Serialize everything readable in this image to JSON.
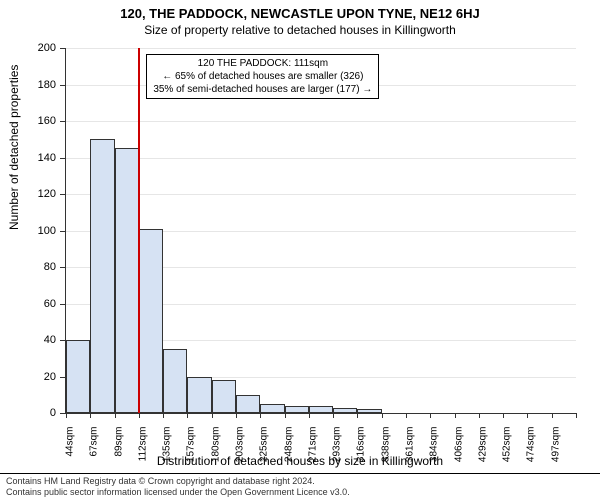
{
  "title": "120, THE PADDOCK, NEWCASTLE UPON TYNE, NE12 6HJ",
  "subtitle": "Size of property relative to detached houses in Killingworth",
  "y_axis_label": "Number of detached properties",
  "x_axis_label": "Distribution of detached houses by size in Killingworth",
  "footer_line1": "Contains HM Land Registry data © Crown copyright and database right 2024.",
  "footer_line2": "Contains public sector information licensed under the Open Government Licence v3.0.",
  "annotation": {
    "line1": "120 THE PADDOCK: 111sqm",
    "line2": "← 65% of detached houses are smaller (326)",
    "line3": "35% of semi-detached houses are larger (177) →"
  },
  "chart": {
    "type": "histogram",
    "ylim": [
      0,
      200
    ],
    "ytick_step": 20,
    "bar_fill": "#d6e2f3",
    "bar_stroke": "#333333",
    "grid_color": "#e6e6e6",
    "axis_color": "#333333",
    "ref_line_color": "#cc0000",
    "ref_value_sqm": 111,
    "x_start": 44,
    "x_bin_width": 22.5,
    "x_labels": [
      "44sqm",
      "67sqm",
      "89sqm",
      "112sqm",
      "135sqm",
      "157sqm",
      "180sqm",
      "203sqm",
      "225sqm",
      "248sqm",
      "271sqm",
      "293sqm",
      "316sqm",
      "338sqm",
      "361sqm",
      "384sqm",
      "406sqm",
      "429sqm",
      "452sqm",
      "474sqm",
      "497sqm"
    ],
    "values": [
      40,
      150,
      145,
      101,
      35,
      20,
      18,
      10,
      5,
      4,
      4,
      3,
      2,
      0,
      0,
      0,
      0,
      0,
      0,
      0,
      0
    ]
  }
}
